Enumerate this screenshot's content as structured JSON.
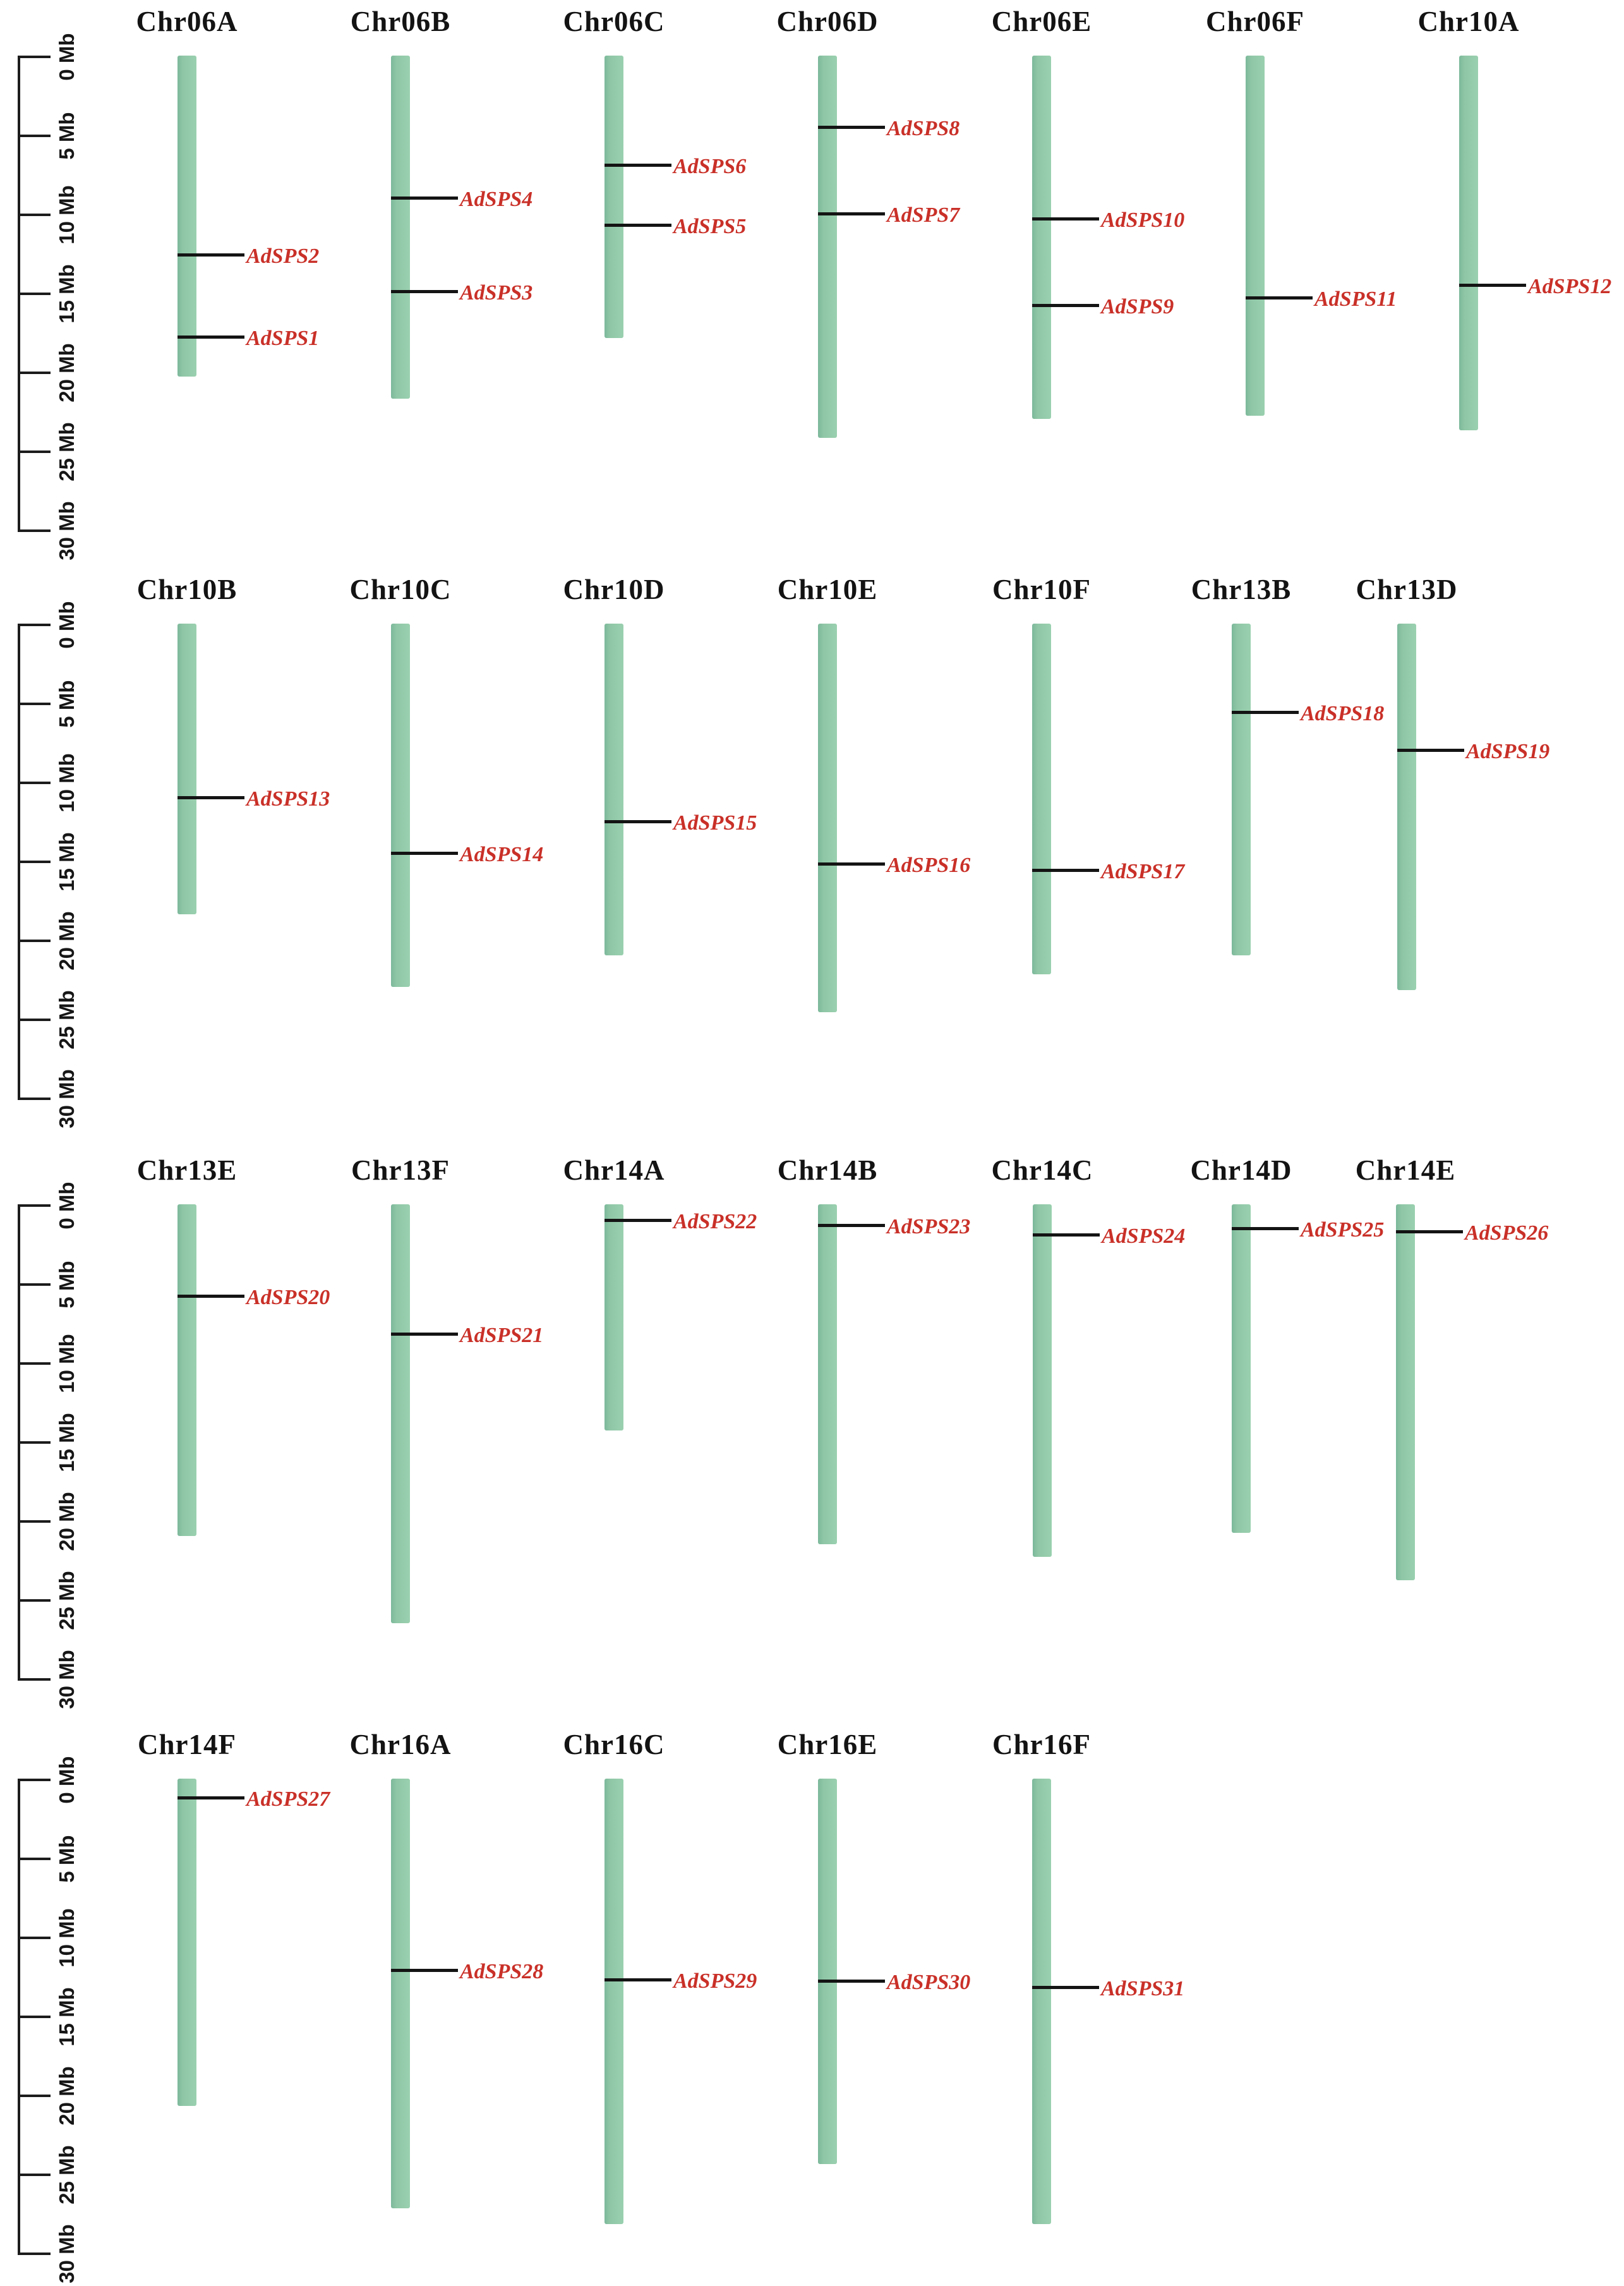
{
  "figure": {
    "description": "Chromosomal distribution map of AdSPS genes",
    "unit": "Mb"
  },
  "colors": {
    "chromosome_green": "#8fc7a6",
    "chromosome_green_edge": "#7cb89b",
    "gene_label_red": "#c93028",
    "line_black": "#141414",
    "background": "#ffffff"
  },
  "scale": {
    "unit": "Mb",
    "max_mb": 30,
    "tick_step_mb": 5,
    "ticks": [
      "0 Mb",
      "5 Mb",
      "10 Mb",
      "15 Mb",
      "20 Mb",
      "25 Mb",
      "30 Mb"
    ]
  },
  "rows": [
    {
      "chromosomes": [
        {
          "name": "Chr06A",
          "length_mb": 20.3,
          "genes": [
            {
              "name": "AdSPS2",
              "pos_mb": 12.6
            },
            {
              "name": "AdSPS1",
              "pos_mb": 17.8
            }
          ]
        },
        {
          "name": "Chr06B",
          "length_mb": 21.7,
          "genes": [
            {
              "name": "AdSPS4",
              "pos_mb": 9.0
            },
            {
              "name": "AdSPS3",
              "pos_mb": 14.9
            }
          ]
        },
        {
          "name": "Chr06C",
          "length_mb": 17.9,
          "genes": [
            {
              "name": "AdSPS6",
              "pos_mb": 6.9
            },
            {
              "name": "AdSPS5",
              "pos_mb": 10.7
            }
          ]
        },
        {
          "name": "Chr06D",
          "length_mb": 24.2,
          "genes": [
            {
              "name": "AdSPS8",
              "pos_mb": 4.5
            },
            {
              "name": "AdSPS7",
              "pos_mb": 10.0
            }
          ]
        },
        {
          "name": "Chr06E",
          "length_mb": 23.0,
          "genes": [
            {
              "name": "AdSPS10",
              "pos_mb": 10.3
            },
            {
              "name": "AdSPS9",
              "pos_mb": 15.8
            }
          ]
        },
        {
          "name": "Chr06F",
          "length_mb": 22.8,
          "genes": [
            {
              "name": "AdSPS11",
              "pos_mb": 15.3
            }
          ]
        },
        {
          "name": "Chr10A",
          "length_mb": 23.7,
          "genes": [
            {
              "name": "AdSPS12",
              "pos_mb": 14.5
            }
          ]
        }
      ]
    },
    {
      "chromosomes": [
        {
          "name": "Chr10B",
          "length_mb": 18.4,
          "genes": [
            {
              "name": "AdSPS13",
              "pos_mb": 11.0
            }
          ]
        },
        {
          "name": "Chr10C",
          "length_mb": 23.0,
          "genes": [
            {
              "name": "AdSPS14",
              "pos_mb": 14.5
            }
          ]
        },
        {
          "name": "Chr10D",
          "length_mb": 21.0,
          "genes": [
            {
              "name": "AdSPS15",
              "pos_mb": 12.5
            }
          ]
        },
        {
          "name": "Chr10E",
          "length_mb": 24.6,
          "genes": [
            {
              "name": "AdSPS16",
              "pos_mb": 15.2
            }
          ]
        },
        {
          "name": "Chr10F",
          "length_mb": 22.2,
          "genes": [
            {
              "name": "AdSPS17",
              "pos_mb": 15.6
            }
          ]
        },
        {
          "name": "Chr13B",
          "length_mb": 21.0,
          "genes": [
            {
              "name": "AdSPS18",
              "pos_mb": 5.6
            }
          ]
        },
        {
          "name": "Chr13D",
          "length_mb": 23.2,
          "genes": [
            {
              "name": "AdSPS19",
              "pos_mb": 8.0
            }
          ]
        }
      ]
    },
    {
      "chromosomes": [
        {
          "name": "Chr13E",
          "length_mb": 21.0,
          "genes": [
            {
              "name": "AdSPS20",
              "pos_mb": 5.8
            }
          ]
        },
        {
          "name": "Chr13F",
          "length_mb": 26.5,
          "genes": [
            {
              "name": "AdSPS21",
              "pos_mb": 8.2
            }
          ]
        },
        {
          "name": "Chr14A",
          "length_mb": 14.3,
          "genes": [
            {
              "name": "AdSPS22",
              "pos_mb": 1.0
            }
          ]
        },
        {
          "name": "Chr14B",
          "length_mb": 21.5,
          "genes": [
            {
              "name": "AdSPS23",
              "pos_mb": 1.3
            }
          ]
        },
        {
          "name": "Chr14C",
          "length_mb": 22.3,
          "genes": [
            {
              "name": "AdSPS24",
              "pos_mb": 1.9
            }
          ]
        },
        {
          "name": "Chr14D",
          "length_mb": 20.8,
          "genes": [
            {
              "name": "AdSPS25",
              "pos_mb": 1.5
            }
          ]
        },
        {
          "name": "Chr14E",
          "length_mb": 23.8,
          "genes": [
            {
              "name": "AdSPS26",
              "pos_mb": 1.7
            }
          ]
        }
      ]
    },
    {
      "chromosomes": [
        {
          "name": "Chr14F",
          "length_mb": 20.7,
          "genes": [
            {
              "name": "AdSPS27",
              "pos_mb": 1.2
            }
          ]
        },
        {
          "name": "Chr16A",
          "length_mb": 27.2,
          "genes": [
            {
              "name": "AdSPS28",
              "pos_mb": 12.1
            }
          ]
        },
        {
          "name": "Chr16C",
          "length_mb": 28.2,
          "genes": [
            {
              "name": "AdSPS29",
              "pos_mb": 12.7
            }
          ]
        },
        {
          "name": "Chr16E",
          "length_mb": 24.4,
          "genes": [
            {
              "name": "AdSPS30",
              "pos_mb": 12.8
            }
          ]
        },
        {
          "name": "Chr16F",
          "length_mb": 28.2,
          "genes": [
            {
              "name": "AdSPS31",
              "pos_mb": 13.2
            }
          ]
        }
      ]
    }
  ]
}
